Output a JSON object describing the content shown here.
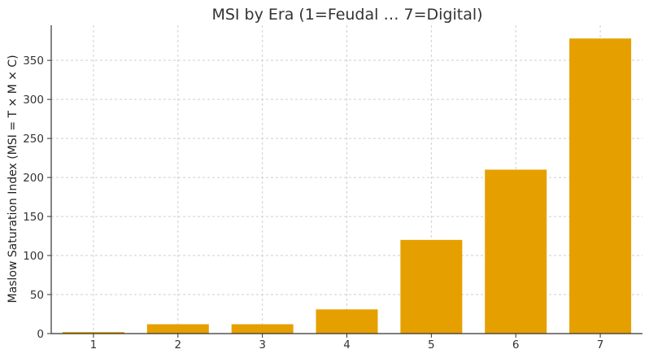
{
  "chart_data": {
    "type": "bar",
    "title": "MSI by Era (1=Feudal … 7=Digital)",
    "xlabel": "",
    "ylabel": "Maslow Saturation Index (MSI = T × M × C)",
    "categories": [
      "1",
      "2",
      "3",
      "4",
      "5",
      "6",
      "7"
    ],
    "values": [
      2,
      12,
      12,
      31,
      120,
      210,
      378
    ],
    "ylim": [
      0,
      395
    ],
    "yticks": [
      0,
      50,
      100,
      150,
      200,
      250,
      300,
      350
    ],
    "grid": true,
    "legend": "none",
    "bar_color": "#E5A000"
  }
}
